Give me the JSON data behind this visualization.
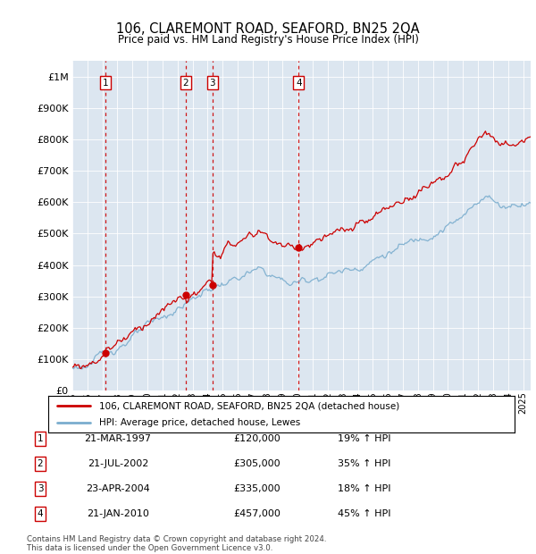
{
  "title": "106, CLAREMONT ROAD, SEAFORD, BN25 2QA",
  "subtitle": "Price paid vs. HM Land Registry's House Price Index (HPI)",
  "ylabel_ticks": [
    "£0",
    "£100K",
    "£200K",
    "£300K",
    "£400K",
    "£500K",
    "£600K",
    "£700K",
    "£800K",
    "£900K",
    "£1M"
  ],
  "ytick_values": [
    0,
    100000,
    200000,
    300000,
    400000,
    500000,
    600000,
    700000,
    800000,
    900000,
    1000000
  ],
  "ylim": [
    0,
    1050000
  ],
  "xlim_start": 1995.0,
  "xlim_end": 2025.5,
  "plot_bg_color": "#dce6f0",
  "grid_color": "#ffffff",
  "sale_color": "#cc0000",
  "hpi_color": "#7aadce",
  "sale_line_color": "#cc0000",
  "purchases": [
    {
      "date": 1997.22,
      "price": 120000,
      "label": "1"
    },
    {
      "date": 2002.55,
      "price": 305000,
      "label": "2"
    },
    {
      "date": 2004.31,
      "price": 335000,
      "label": "3"
    },
    {
      "date": 2010.06,
      "price": 457000,
      "label": "4"
    }
  ],
  "legend_sale_label": "106, CLAREMONT ROAD, SEAFORD, BN25 2QA (detached house)",
  "legend_hpi_label": "HPI: Average price, detached house, Lewes",
  "table_rows": [
    {
      "num": "1",
      "date": "21-MAR-1997",
      "price": "£120,000",
      "change": "19% ↑ HPI"
    },
    {
      "num": "2",
      "date": "21-JUL-2002",
      "price": "£305,000",
      "change": "35% ↑ HPI"
    },
    {
      "num": "3",
      "date": "23-APR-2004",
      "price": "£335,000",
      "change": "18% ↑ HPI"
    },
    {
      "num": "4",
      "date": "21-JAN-2010",
      "price": "£457,000",
      "change": "45% ↑ HPI"
    }
  ],
  "footer": "Contains HM Land Registry data © Crown copyright and database right 2024.\nThis data is licensed under the Open Government Licence v3.0."
}
